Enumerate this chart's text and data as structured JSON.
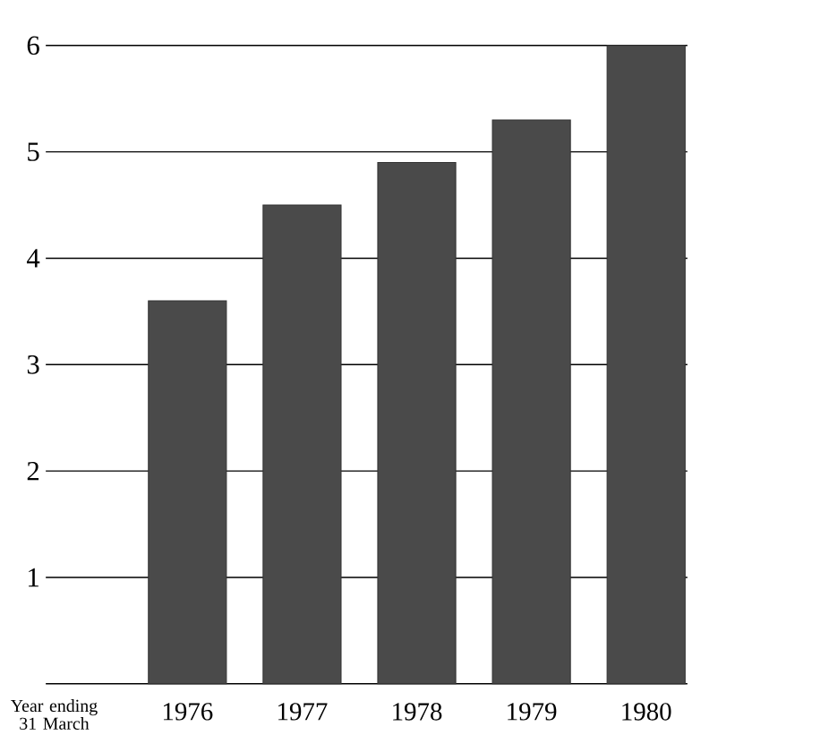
{
  "chart_data": {
    "type": "bar",
    "xlabel": "Year ending 31 March",
    "categories": [
      "1976",
      "1977",
      "1978",
      "1979",
      "1980"
    ],
    "values": [
      3.6,
      4.5,
      4.9,
      5.3,
      6.0
    ],
    "color": "#4a4a4a",
    "ylim": [
      0,
      6
    ],
    "yticks": [
      1,
      2,
      3,
      4,
      5,
      6
    ],
    "grid": "y"
  }
}
